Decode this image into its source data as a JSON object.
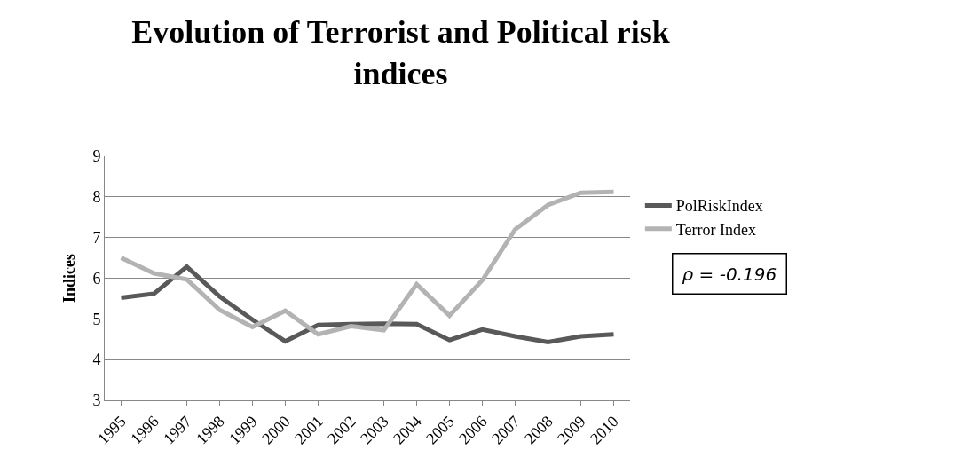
{
  "chart_data": {
    "type": "line",
    "title": "Evolution of Terrorist and Political risk indices",
    "ylabel": "Indices",
    "categories": [
      "1995",
      "1996",
      "1997",
      "1998",
      "1999",
      "2000",
      "2001",
      "2002",
      "2003",
      "2004",
      "2005",
      "2006",
      "2007",
      "2008",
      "2009",
      "2010"
    ],
    "series": [
      {
        "name": "PolRiskIndex",
        "color": "#595959",
        "values": [
          5.52,
          5.62,
          6.28,
          5.55,
          4.98,
          4.45,
          4.85,
          4.87,
          4.88,
          4.87,
          4.48,
          4.74,
          4.57,
          4.43,
          4.57,
          4.62
        ]
      },
      {
        "name": "Terror Index",
        "color": "#b3b3b3",
        "values": [
          6.5,
          6.12,
          5.97,
          5.22,
          4.8,
          5.2,
          4.62,
          4.82,
          4.72,
          5.85,
          5.08,
          5.95,
          7.2,
          7.8,
          8.1,
          8.12
        ]
      }
    ],
    "ylim": [
      3,
      9
    ],
    "yticks": [
      3,
      4,
      5,
      6,
      7,
      8,
      9
    ],
    "grid": "y",
    "legend": "right",
    "marker": "none",
    "line_style": "solid",
    "annotations": [
      "ρ = -0.196"
    ]
  }
}
